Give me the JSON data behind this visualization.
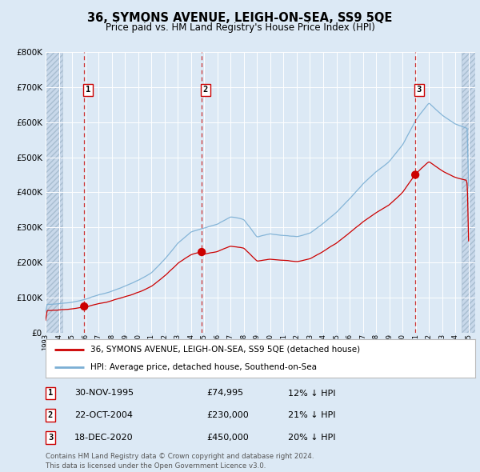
{
  "title": "36, SYMONS AVENUE, LEIGH-ON-SEA, SS9 5QE",
  "subtitle": "Price paid vs. HM Land Registry's House Price Index (HPI)",
  "background_color": "#dce9f5",
  "grid_color": "#ffffff",
  "red_line_color": "#cc0000",
  "blue_line_color": "#7bafd4",
  "dashed_line_color": "#cc4444",
  "transaction_years": [
    1995.92,
    2004.81,
    2020.97
  ],
  "transaction_values": [
    74995,
    230000,
    450000
  ],
  "legend_red": "36, SYMONS AVENUE, LEIGH-ON-SEA, SS9 5QE (detached house)",
  "legend_blue": "HPI: Average price, detached house, Southend-on-Sea",
  "footnote": "Contains HM Land Registry data © Crown copyright and database right 2024.\nThis data is licensed under the Open Government Licence v3.0.",
  "table": [
    [
      "1",
      "30-NOV-1995",
      "£74,995",
      "12% ↓ HPI"
    ],
    [
      "2",
      "22-OCT-2004",
      "£230,000",
      "21% ↓ HPI"
    ],
    [
      "3",
      "18-DEC-2020",
      "£450,000",
      "20% ↓ HPI"
    ]
  ],
  "hpi_control_years": [
    1993,
    1994,
    1995,
    1996,
    1997,
    1998,
    1999,
    2000,
    2001,
    2002,
    2003,
    2004,
    2005,
    2006,
    2007,
    2008,
    2009,
    2010,
    2011,
    2012,
    2013,
    2014,
    2015,
    2016,
    2017,
    2018,
    2019,
    2020,
    2021,
    2022,
    2023,
    2024,
    2025
  ],
  "hpi_control_vals": [
    80000,
    84000,
    88000,
    96000,
    108000,
    118000,
    132000,
    148000,
    170000,
    210000,
    255000,
    288000,
    300000,
    310000,
    330000,
    320000,
    270000,
    278000,
    272000,
    268000,
    278000,
    305000,
    338000,
    375000,
    415000,
    450000,
    480000,
    525000,
    595000,
    645000,
    610000,
    585000,
    570000
  ],
  "ylim": [
    0,
    800000
  ],
  "xlim": [
    1993,
    2025.5
  ]
}
